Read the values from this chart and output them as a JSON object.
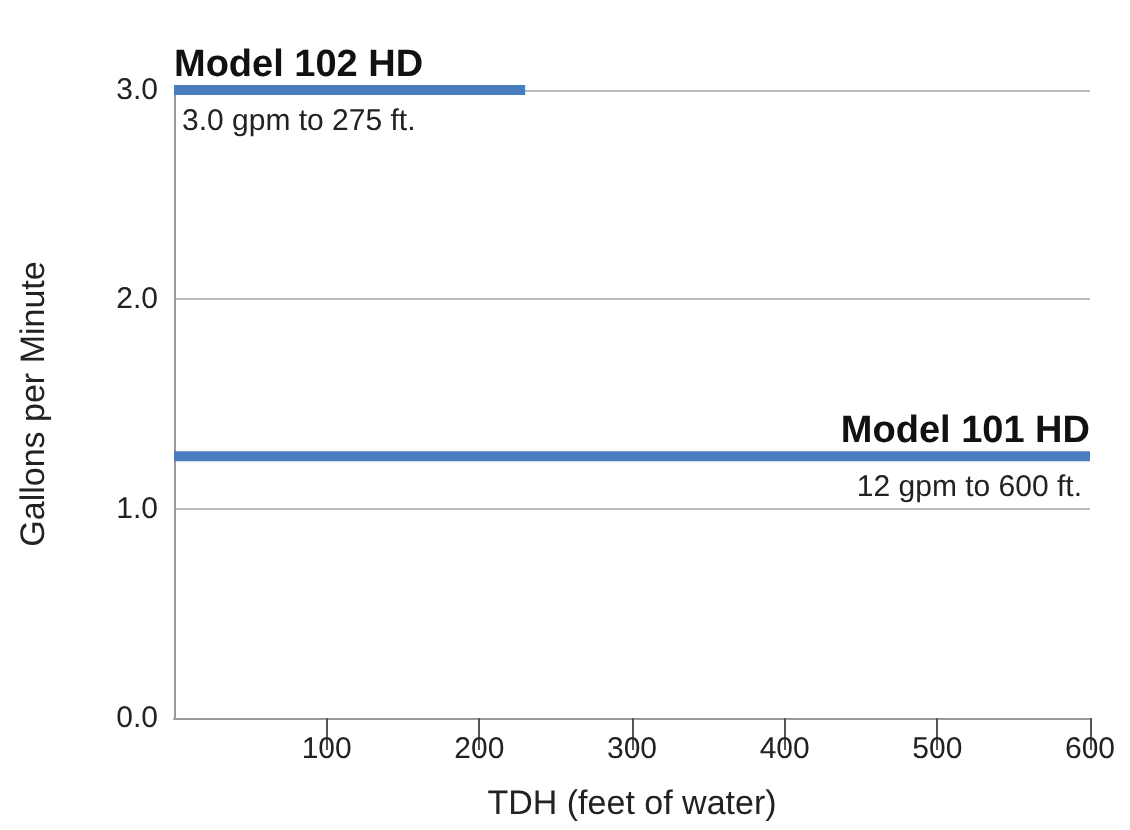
{
  "chart_data": {
    "type": "line",
    "xlabel": "TDH (feet of water)",
    "ylabel": "Gallons per Minute",
    "series": [
      {
        "name": "Model 102 HD",
        "color": "#4a7dc0",
        "x": [
          0,
          230
        ],
        "values": [
          3.0,
          3.0
        ]
      },
      {
        "name": "Model 101 HD",
        "color": "#4a7dc0",
        "x": [
          0,
          600
        ],
        "values": [
          1.25,
          1.25
        ]
      }
    ],
    "annotations": [
      {
        "text": "3.0 gpm to 275 ft.",
        "x": 0,
        "y": 3.0
      },
      {
        "text": "12 gpm to 600 ft.",
        "x": 600,
        "y": 1.25
      }
    ],
    "xlim": [
      0,
      600
    ],
    "xticks": [
      100,
      200,
      300,
      400,
      500,
      600
    ],
    "ylim": [
      0,
      3.0
    ],
    "yticks": [
      {
        "value": 0,
        "label": "0.0"
      },
      {
        "value": 1,
        "label": "1.0"
      },
      {
        "value": 2,
        "label": "2.0"
      },
      {
        "value": 3,
        "label": "3.0"
      }
    ],
    "grid": "y",
    "marker": "none",
    "line_style": "solid",
    "legend": false
  }
}
